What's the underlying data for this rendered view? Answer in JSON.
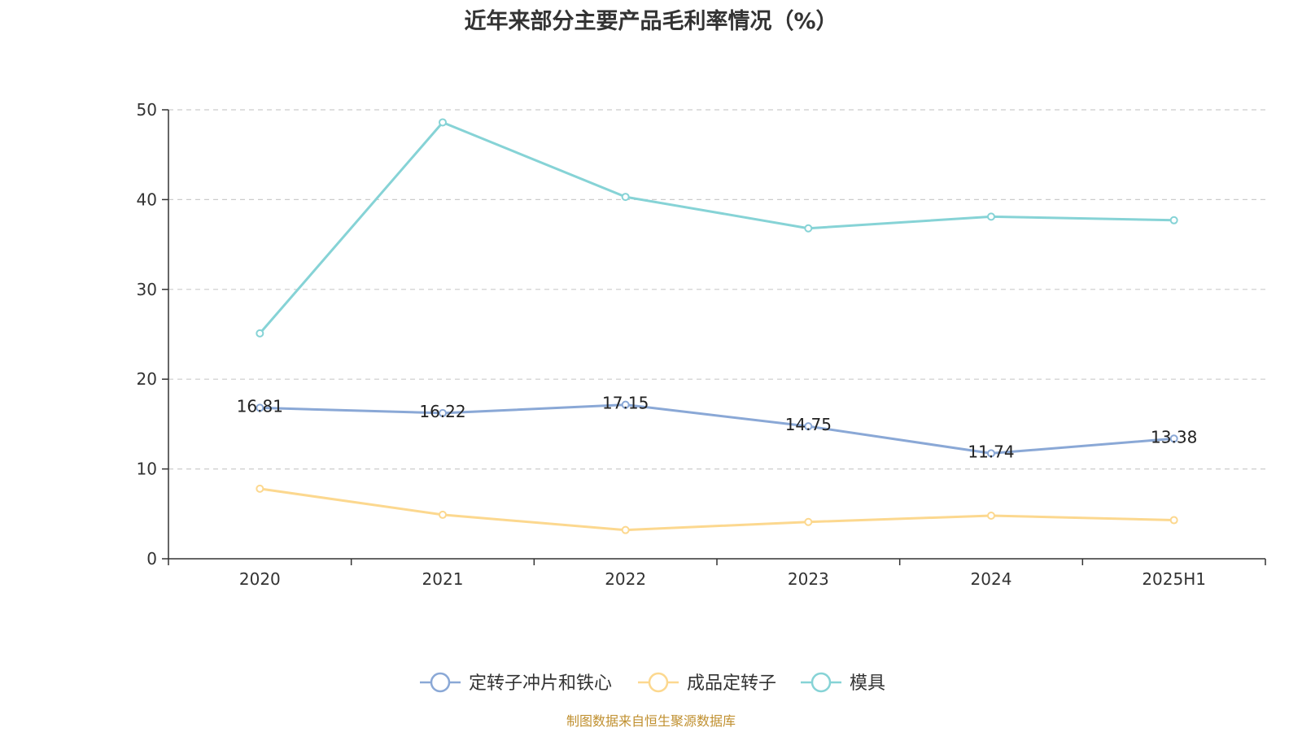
{
  "chart_data": {
    "type": "line",
    "title": "近年来部分主要产品毛利率情况（%）",
    "categories": [
      "2020",
      "2021",
      "2022",
      "2023",
      "2024",
      "2025H1"
    ],
    "ylim": [
      0,
      50
    ],
    "yticks": [
      0,
      10,
      20,
      30,
      40,
      50
    ],
    "grid": "horizontal dashed",
    "legend_position": "bottom",
    "series": [
      {
        "name": "定转子冲片和铁心",
        "color": "#8aa8d6",
        "values": [
          16.81,
          16.22,
          17.15,
          14.75,
          11.74,
          13.38
        ],
        "labels": [
          "16.81",
          "16.22",
          "17.15",
          "14.75",
          "11.74",
          "13.38"
        ]
      },
      {
        "name": "成品定转子",
        "color": "#fcd88f",
        "values": [
          7.8,
          4.9,
          3.2,
          4.1,
          4.8,
          4.3
        ]
      },
      {
        "name": "模具",
        "color": "#86d3d6",
        "values": [
          25.1,
          48.6,
          40.3,
          36.8,
          38.1,
          37.7
        ]
      }
    ]
  },
  "source_note": "制图数据来自恒生聚源数据库"
}
